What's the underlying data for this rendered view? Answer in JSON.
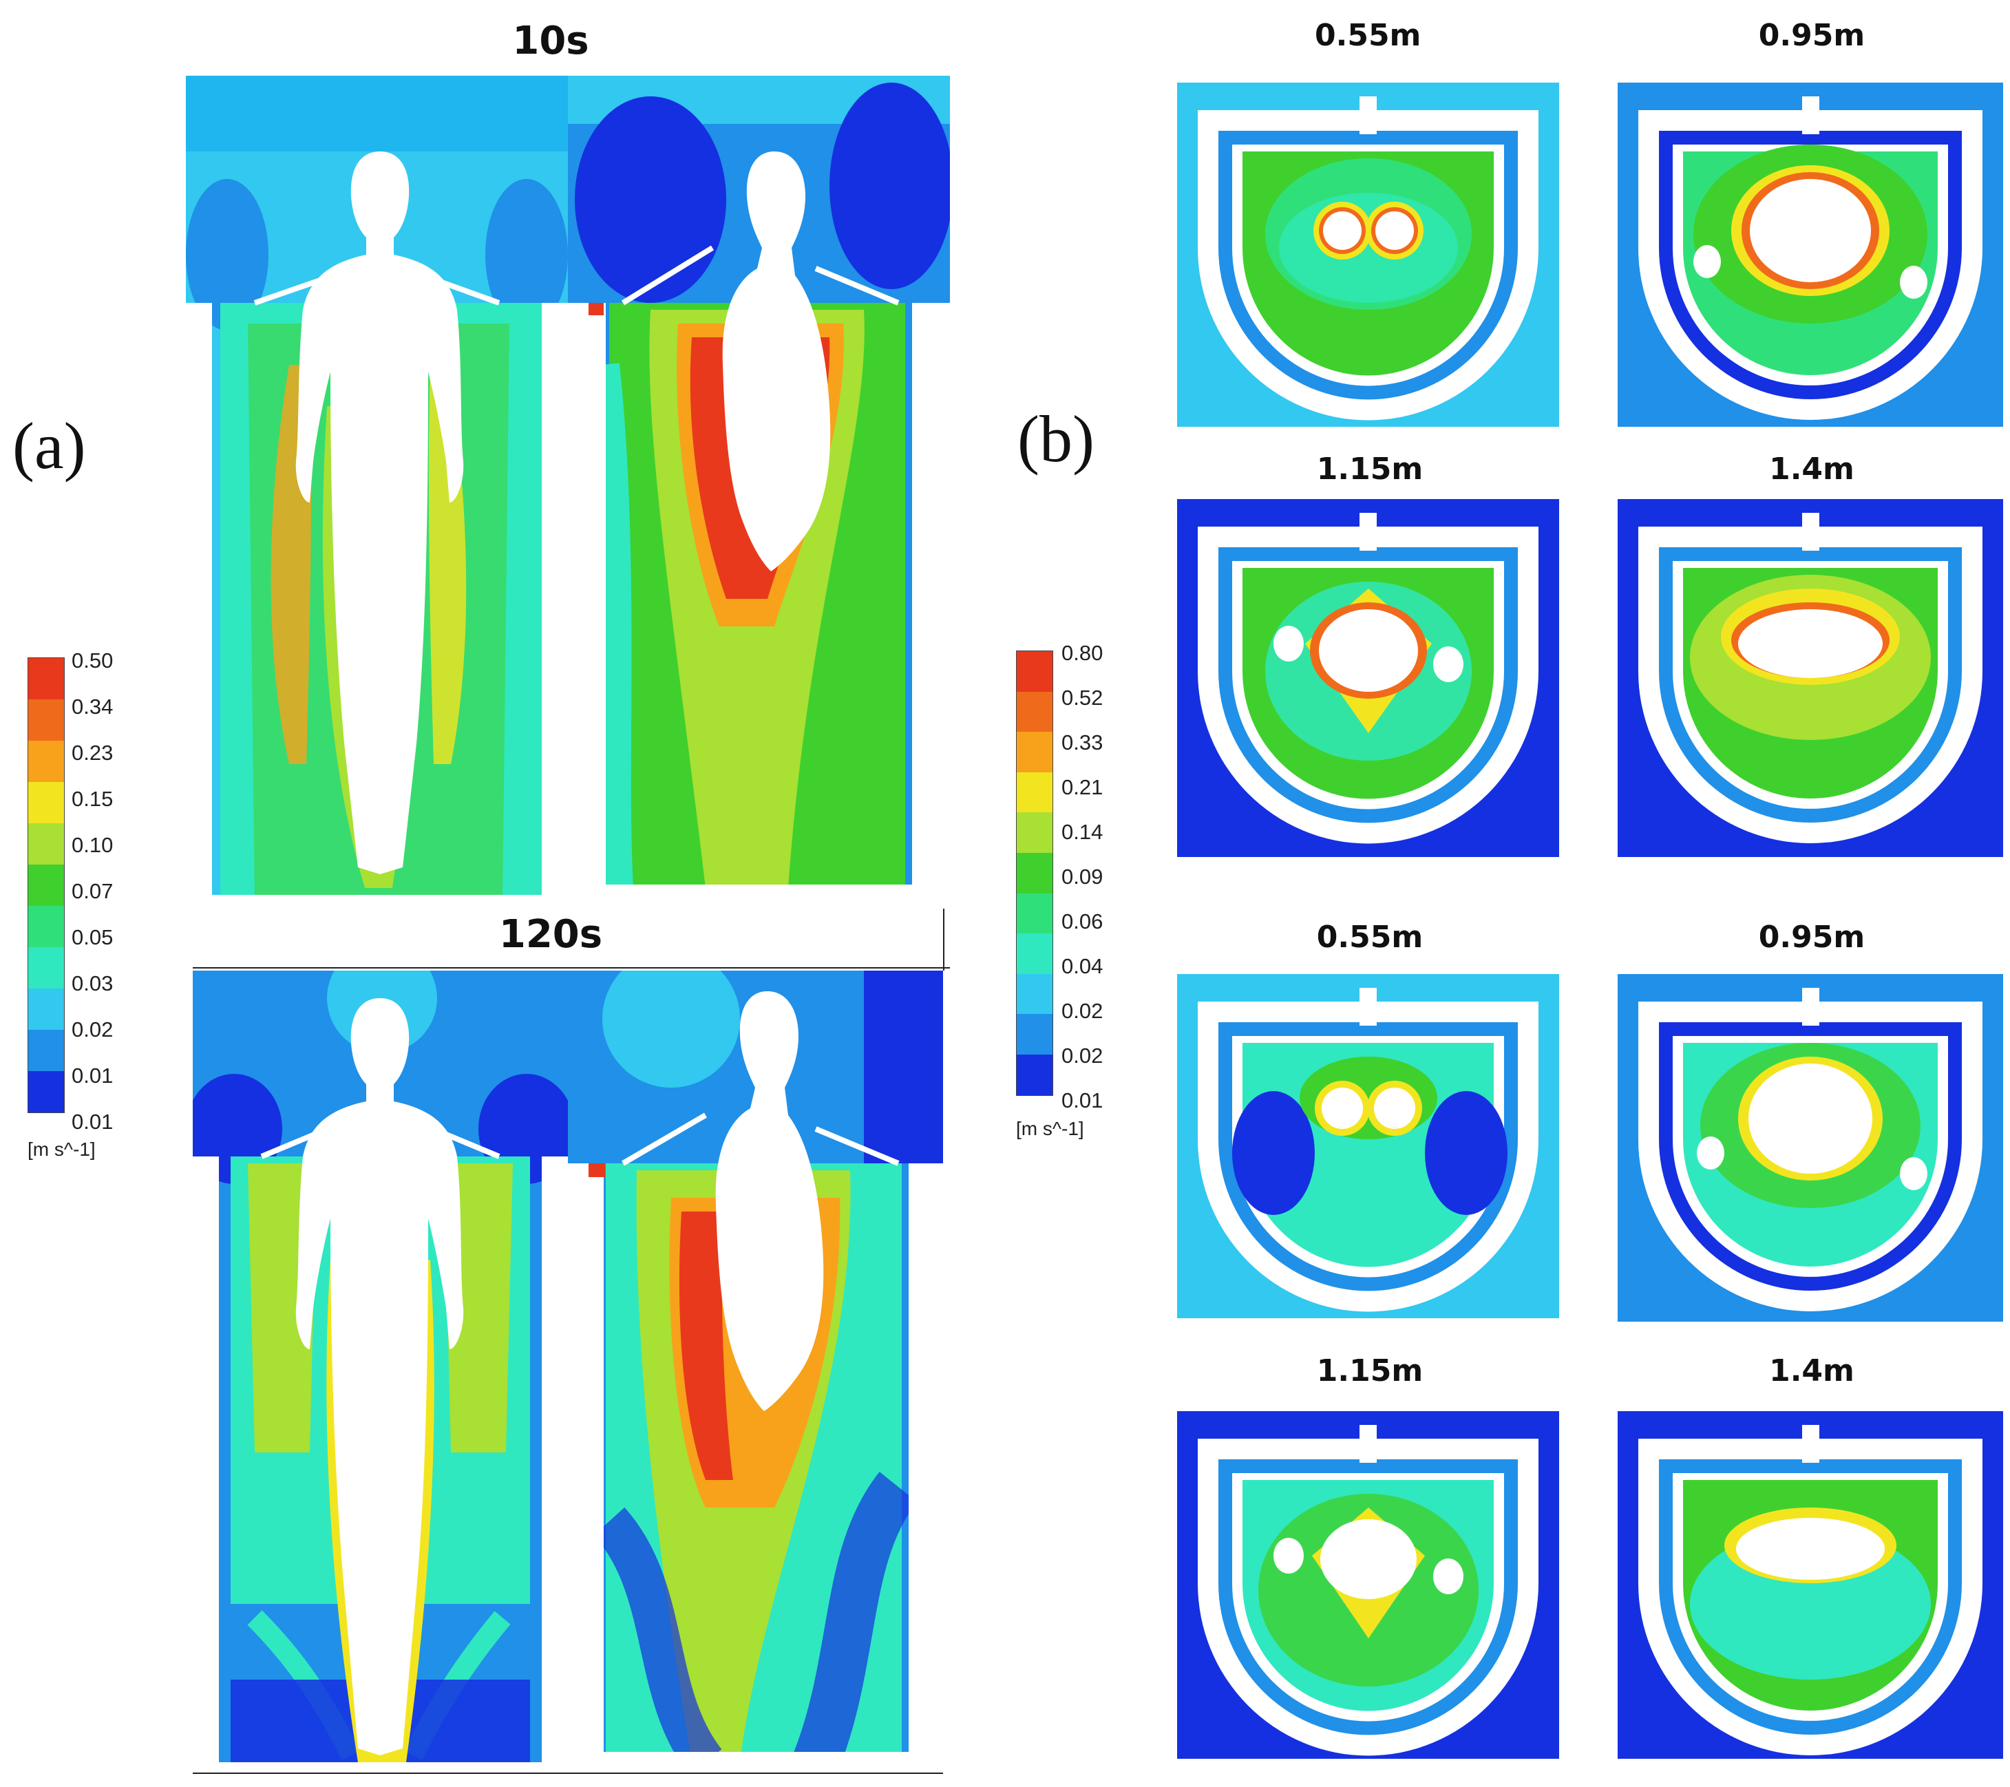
{
  "panels": {
    "a": {
      "letter": "(a)",
      "rows": [
        {
          "time_label": "10s"
        },
        {
          "time_label": "120s"
        }
      ],
      "colorbar": {
        "labels": [
          "0.50",
          "0.34",
          "0.23",
          "0.15",
          "0.10",
          "0.07",
          "0.05",
          "0.03",
          "0.02",
          "0.01",
          "0.01"
        ],
        "unit": "[m s^-1]"
      }
    },
    "b": {
      "letter": "(b)",
      "heights_top": [
        "0.55m",
        "0.95m",
        "1.15m",
        "1.4m"
      ],
      "heights_bottom": [
        "0.55m",
        "0.95m",
        "1.15m",
        "1.4m"
      ],
      "colorbar": {
        "labels": [
          "0.80",
          "0.52",
          "0.33",
          "0.21",
          "0.14",
          "0.09",
          "0.06",
          "0.04",
          "0.02",
          "0.02",
          "0.01"
        ],
        "unit": "[m s^-1]"
      }
    }
  },
  "colors": {
    "scale": [
      "#e8391c",
      "#f06a1c",
      "#f7a21a",
      "#f2e520",
      "#a8e034",
      "#3fd02e",
      "#2fe07a",
      "#2fe8c0",
      "#32c8f0",
      "#2090e8",
      "#1530e0"
    ]
  }
}
